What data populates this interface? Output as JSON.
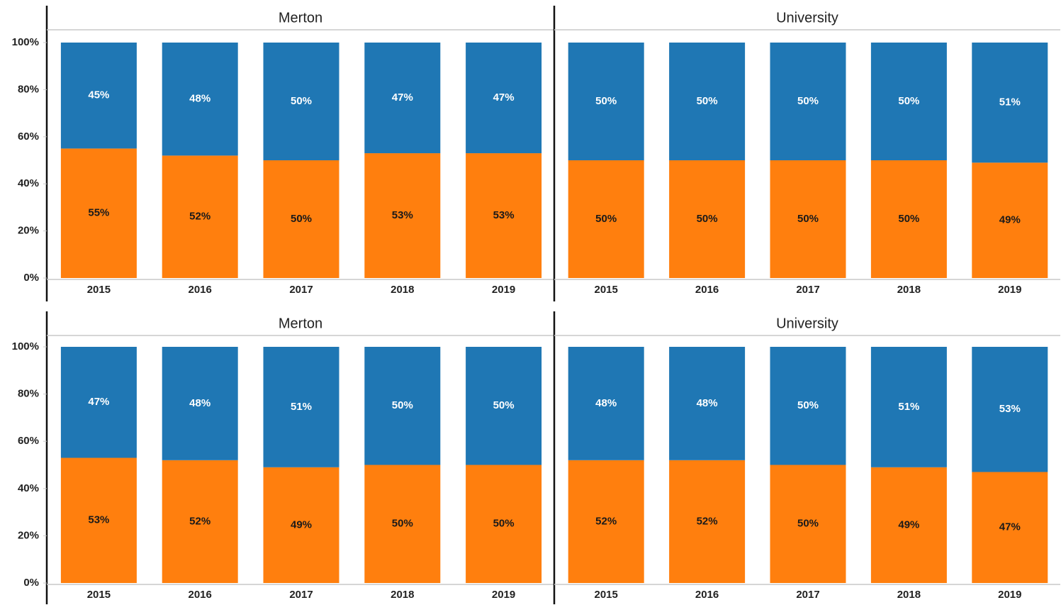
{
  "chart_data": [
    {
      "type": "stacked_bar",
      "title": "Merton",
      "categories": [
        "2015",
        "2016",
        "2017",
        "2018",
        "2019"
      ],
      "series": [
        {
          "color": "#ff7f0e",
          "label_color": "#1a1a1a",
          "values": [
            55,
            52,
            50,
            53,
            53
          ],
          "value_labels": [
            "55%",
            "52%",
            "50%",
            "53%",
            "53%"
          ]
        },
        {
          "color": "#1f77b4",
          "label_color": "#ffffff",
          "values": [
            45,
            48,
            50,
            47,
            47
          ],
          "value_labels": [
            "45%",
            "48%",
            "50%",
            "47%",
            "47%"
          ]
        }
      ],
      "ylim": [
        0,
        100
      ],
      "yticks": [
        {
          "value": 0,
          "label": "0%"
        },
        {
          "value": 20,
          "label": "20%"
        },
        {
          "value": 40,
          "label": "40%"
        },
        {
          "value": 60,
          "label": "60%"
        },
        {
          "value": 80,
          "label": "80%"
        },
        {
          "value": 100,
          "label": "100%"
        }
      ]
    },
    {
      "type": "stacked_bar",
      "title": "University",
      "categories": [
        "2015",
        "2016",
        "2017",
        "2018",
        "2019"
      ],
      "series": [
        {
          "color": "#ff7f0e",
          "label_color": "#1a1a1a",
          "values": [
            50,
            50,
            50,
            50,
            49
          ],
          "value_labels": [
            "50%",
            "50%",
            "50%",
            "50%",
            "49%"
          ]
        },
        {
          "color": "#1f77b4",
          "label_color": "#ffffff",
          "values": [
            50,
            50,
            50,
            50,
            51
          ],
          "value_labels": [
            "50%",
            "50%",
            "50%",
            "50%",
            "51%"
          ]
        }
      ],
      "ylim": [
        0,
        100
      ]
    },
    {
      "type": "stacked_bar",
      "title": "Merton",
      "categories": [
        "2015",
        "2016",
        "2017",
        "2018",
        "2019"
      ],
      "series": [
        {
          "color": "#ff7f0e",
          "label_color": "#1a1a1a",
          "values": [
            53,
            52,
            49,
            50,
            50
          ],
          "value_labels": [
            "53%",
            "52%",
            "49%",
            "50%",
            "50%"
          ]
        },
        {
          "color": "#1f77b4",
          "label_color": "#ffffff",
          "values": [
            47,
            48,
            51,
            50,
            50
          ],
          "value_labels": [
            "47%",
            "48%",
            "51%",
            "50%",
            "50%"
          ]
        }
      ],
      "ylim": [
        0,
        100
      ],
      "yticks": [
        {
          "value": 0,
          "label": "0%"
        },
        {
          "value": 20,
          "label": "20%"
        },
        {
          "value": 40,
          "label": "40%"
        },
        {
          "value": 60,
          "label": "60%"
        },
        {
          "value": 80,
          "label": "80%"
        },
        {
          "value": 100,
          "label": "100%"
        }
      ]
    },
    {
      "type": "stacked_bar",
      "title": "University",
      "categories": [
        "2015",
        "2016",
        "2017",
        "2018",
        "2019"
      ],
      "series": [
        {
          "color": "#ff7f0e",
          "label_color": "#1a1a1a",
          "values": [
            52,
            52,
            50,
            49,
            47
          ],
          "value_labels": [
            "52%",
            "52%",
            "50%",
            "49%",
            "47%"
          ]
        },
        {
          "color": "#1f77b4",
          "label_color": "#ffffff",
          "values": [
            48,
            48,
            50,
            51,
            53
          ],
          "value_labels": [
            "48%",
            "48%",
            "50%",
            "51%",
            "53%"
          ]
        }
      ],
      "ylim": [
        0,
        100
      ]
    }
  ]
}
